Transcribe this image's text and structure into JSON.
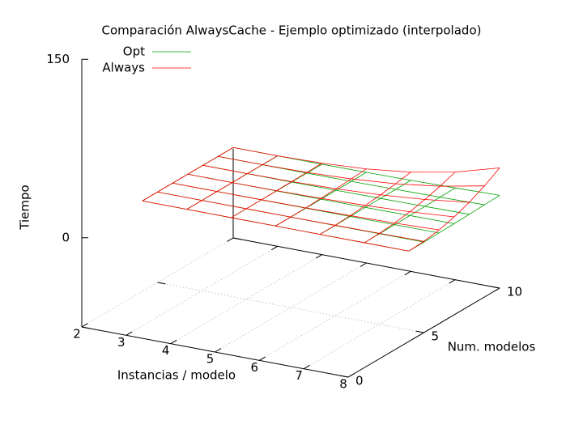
{
  "chart_data": {
    "type": "surface",
    "title": "Comparación AlwaysCache - Ejemplo optimizado (interpolado)",
    "xlabel": "Instancias / modelo",
    "ylabel": "Num. modelos",
    "zlabel": "Tiempo",
    "x": [
      2,
      3,
      4,
      5,
      6,
      7,
      8
    ],
    "y": [
      4,
      5,
      6,
      7,
      8,
      9,
      10
    ],
    "xlim": [
      2,
      8
    ],
    "ylim": [
      0,
      10
    ],
    "zlim": [
      0,
      150
    ],
    "xticks": [
      2,
      3,
      4,
      5,
      6,
      7,
      8
    ],
    "yticks": [
      0,
      5,
      10
    ],
    "zticks": [
      0,
      150
    ],
    "grid": true,
    "series": [
      {
        "name": "Opt",
        "color": "#00a000",
        "values": [
          [
            1,
            1,
            1,
            1,
            1,
            1,
            1
          ],
          [
            1,
            1,
            1,
            1,
            1,
            1.1,
            1.1
          ],
          [
            1,
            1,
            1,
            1,
            1.1,
            1.2,
            1.3
          ],
          [
            1,
            1,
            1,
            1.1,
            1.2,
            1.4,
            1.6
          ],
          [
            1,
            1,
            1,
            1.1,
            1.3,
            1.6,
            2
          ],
          [
            1,
            1,
            1,
            1.1,
            1.4,
            1.9,
            2.5
          ],
          [
            1,
            1,
            1,
            1.2,
            1.6,
            2.2,
            3
          ]
        ]
      },
      {
        "name": "Always",
        "color": "#ff0000",
        "values": [
          [
            1,
            1,
            1,
            1,
            1,
            1,
            1
          ],
          [
            1,
            1,
            1,
            1.1,
            1.2,
            1.4,
            1.7
          ],
          [
            1,
            1,
            1.1,
            1.3,
            1.8,
            2.6,
            3.8
          ],
          [
            1,
            1,
            1.2,
            1.8,
            2.9,
            4.6,
            7.3
          ],
          [
            1,
            1.1,
            1.4,
            2.4,
            4.3,
            7.4,
            12.1
          ],
          [
            1,
            1.1,
            1.6,
            3.2,
            6.1,
            11.1,
            18.4
          ],
          [
            1,
            1.1,
            1.9,
            4.1,
            8.4,
            15.5,
            26
          ]
        ]
      }
    ]
  }
}
